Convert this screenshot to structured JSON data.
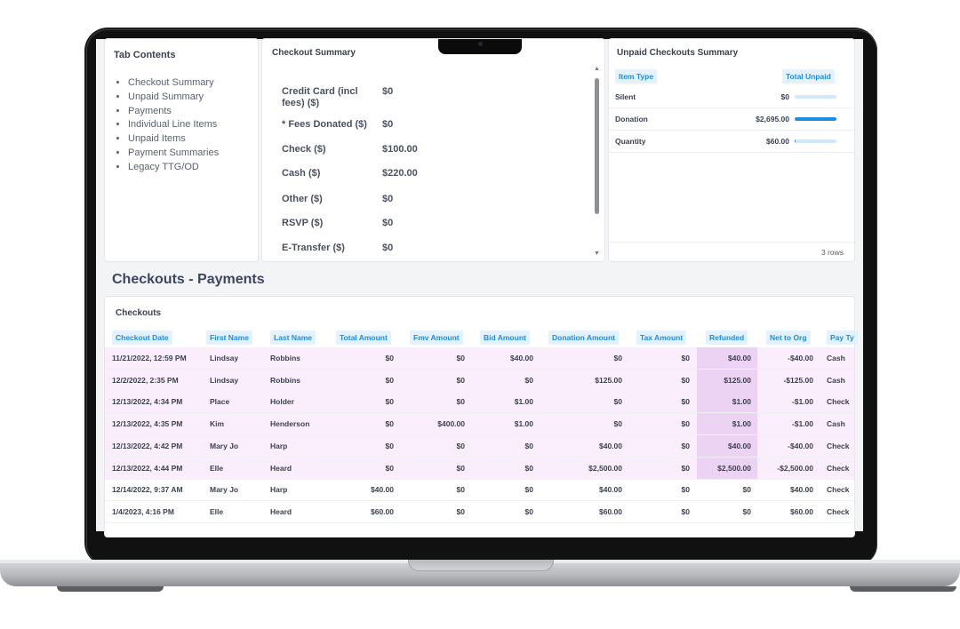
{
  "tab_contents": {
    "title": "Tab Contents",
    "items": [
      "Checkout Summary",
      "Unpaid Summary",
      "Payments",
      "Individual Line Items",
      "Unpaid Items",
      "Payment Summaries",
      "Legacy TTG/OD"
    ]
  },
  "checkout_summary": {
    "title": "Checkout Summary",
    "rows": [
      {
        "label": "Credit Card (incl fees) ($)",
        "value": "$0"
      },
      {
        "label": "* Fees Donated ($)",
        "value": "$0"
      },
      {
        "label": "Check ($)",
        "value": "$100.00"
      },
      {
        "label": "Cash ($)",
        "value": "$220.00"
      },
      {
        "label": "Other ($)",
        "value": "$0"
      },
      {
        "label": "RSVP ($)",
        "value": "$0"
      },
      {
        "label": "E-Transfer ($)",
        "value": "$0"
      }
    ]
  },
  "unpaid_summary": {
    "title": "Unpaid Checkouts Summary",
    "col_type": "Item Type",
    "col_total": "Total Unpaid",
    "rows": [
      {
        "type": "Silent",
        "amount": "$0",
        "fraction": 0
      },
      {
        "type": "Donation",
        "amount": "$2,695.00",
        "fraction": 1
      },
      {
        "type": "Quantity",
        "amount": "$60.00",
        "fraction": 0.022
      }
    ],
    "row_count": "3 rows",
    "bar_color": "#1a8fe0"
  },
  "section_title": "Checkouts - Payments",
  "checkouts": {
    "title": "Checkouts",
    "columns": [
      "Checkout Date",
      "First Name",
      "Last Name",
      "Total Amount",
      "Fmv Amount",
      "Bid Amount",
      "Donation Amount",
      "Tax Amount",
      "Refunded",
      "Net to Org",
      "Pay Ty"
    ],
    "rows": [
      [
        "11/21/2022, 12:59 PM",
        "Lindsay",
        "Robbins",
        "$0",
        "$0",
        "$40.00",
        "$0",
        "$0",
        "$40.00",
        "-$40.00",
        "Cash"
      ],
      [
        "12/2/2022, 2:35 PM",
        "Lindsay",
        "Robbins",
        "$0",
        "$0",
        "$0",
        "$125.00",
        "$0",
        "$125.00",
        "-$125.00",
        "Cash"
      ],
      [
        "12/13/2022, 4:34 PM",
        "Place",
        "Holder",
        "$0",
        "$0",
        "$1.00",
        "$0",
        "$0",
        "$1.00",
        "-$1.00",
        "Check"
      ],
      [
        "12/13/2022, 4:35 PM",
        "Kim",
        "Henderson",
        "$0",
        "$400.00",
        "$1.00",
        "$0",
        "$0",
        "$1.00",
        "-$1.00",
        "Cash"
      ],
      [
        "12/13/2022, 4:42 PM",
        "Mary Jo",
        "Harp",
        "$0",
        "$0",
        "$0",
        "$40.00",
        "$0",
        "$40.00",
        "-$40.00",
        "Check"
      ],
      [
        "12/13/2022, 4:44 PM",
        "Elle",
        "Heard",
        "$0",
        "$0",
        "$0",
        "$2,500.00",
        "$0",
        "$2,500.00",
        "-$2,500.00",
        "Check"
      ],
      [
        "12/14/2022, 9:37 AM",
        "Mary Jo",
        "Harp",
        "$40.00",
        "$0",
        "$0",
        "$40.00",
        "$0",
        "$0",
        "$40.00",
        "Check"
      ],
      [
        "1/4/2023, 4:16 PM",
        "Elle",
        "Heard",
        "$60.00",
        "$0",
        "$0",
        "$60.00",
        "$0",
        "$0",
        "$60.00",
        "Check"
      ]
    ],
    "highlighted_rows": 6,
    "highlight_color": "#fbeefc",
    "refund_highlight_color": "#ecd2f3",
    "header_pill_color": "#e3f2fc",
    "header_text_color": "#1a8fe0"
  }
}
